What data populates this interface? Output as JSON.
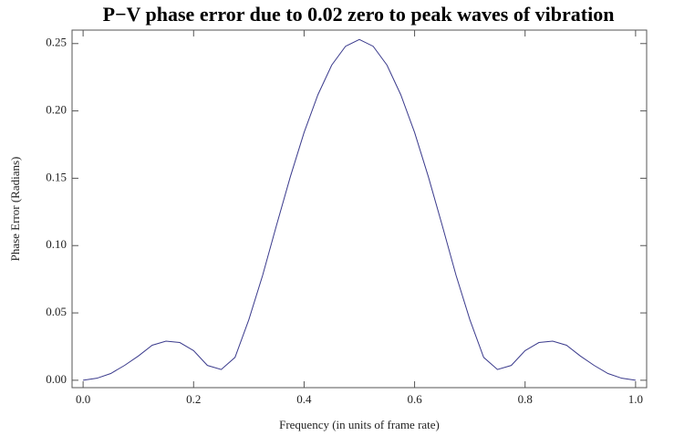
{
  "chart_data": {
    "type": "line",
    "title": "P−V phase error due to 0.02 zero to peak waves of vibration",
    "xlabel": "Frequency (in units of frame rate)",
    "ylabel": "Phase Error (Radians)",
    "x": [
      0,
      0.025,
      0.05,
      0.075,
      0.1,
      0.125,
      0.15,
      0.175,
      0.2,
      0.225,
      0.25,
      0.275,
      0.3,
      0.325,
      0.35,
      0.375,
      0.4,
      0.425,
      0.45,
      0.475,
      0.5,
      0.525,
      0.55,
      0.575,
      0.6,
      0.625,
      0.65,
      0.675,
      0.7,
      0.725,
      0.75,
      0.775,
      0.8,
      0.825,
      0.85,
      0.875,
      0.9,
      0.925,
      0.95,
      0.975,
      1
    ],
    "series": [
      {
        "name": "Phase error",
        "color": "#3a3a8c",
        "values": [
          0,
          0.0015,
          0.005,
          0.011,
          0.018,
          0.026,
          0.029,
          0.028,
          0.022,
          0.011,
          0.008,
          0.017,
          0.045,
          0.078,
          0.115,
          0.151,
          0.184,
          0.212,
          0.234,
          0.248,
          0.253,
          0.248,
          0.234,
          0.212,
          0.184,
          0.151,
          0.115,
          0.078,
          0.045,
          0.017,
          0.008,
          0.011,
          0.022,
          0.028,
          0.029,
          0.026,
          0.018,
          0.011,
          0.005,
          0.0015,
          0
        ]
      }
    ],
    "xlim": [
      -0.02,
      1.02
    ],
    "ylim": [
      -0.0055,
      0.26
    ],
    "xticks": [
      {
        "value": 0,
        "label": "0.0"
      },
      0.2,
      0.4,
      0.6,
      0.8,
      {
        "value": 1,
        "label": "1.0"
      }
    ],
    "yticks": [
      {
        "value": 0,
        "label": "0.00"
      },
      {
        "value": 0.05,
        "label": "0.05"
      },
      {
        "value": 0.1,
        "label": "0.10"
      },
      {
        "value": 0.15,
        "label": "0.15"
      },
      {
        "value": 0.2,
        "label": "0.20"
      },
      {
        "value": 0.25,
        "label": "0.25"
      }
    ],
    "grid": false
  }
}
